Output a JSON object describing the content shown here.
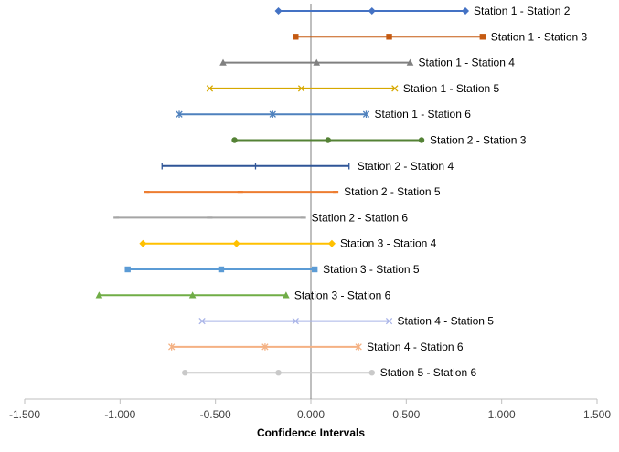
{
  "chart_data": {
    "type": "scatter",
    "title": "",
    "xlabel": "Confidence Intervals",
    "ylabel": "",
    "xlim": [
      -1.5,
      1.5
    ],
    "x_ticks": [
      -1.5,
      -1.0,
      -0.5,
      0.0,
      0.5,
      1.0,
      1.5
    ],
    "x_tick_labels": [
      "-1.500",
      "-1.000",
      "-0.500",
      "0.000",
      "0.500",
      "1.000",
      "1.500"
    ],
    "grid": false,
    "legend": "none",
    "series": [
      {
        "name": "Station 1 - Station 2",
        "lower": -0.17,
        "estimate": 0.32,
        "upper": 0.81,
        "color": "#4472C4",
        "marker": "diamond"
      },
      {
        "name": "Station 1 - Station 3",
        "lower": -0.08,
        "estimate": 0.41,
        "upper": 0.9,
        "color": "#C55A11",
        "marker": "square"
      },
      {
        "name": "Station 1 - Station 4",
        "lower": -0.46,
        "estimate": 0.03,
        "upper": 0.52,
        "color": "#808080",
        "marker": "triangle"
      },
      {
        "name": "Station 1 - Station 5",
        "lower": -0.53,
        "estimate": -0.05,
        "upper": 0.44,
        "color": "#D6A800",
        "marker": "x"
      },
      {
        "name": "Station 1 - Station 6",
        "lower": -0.69,
        "estimate": -0.2,
        "upper": 0.29,
        "color": "#4F81BD",
        "marker": "star"
      },
      {
        "name": "Station 2 - Station 3",
        "lower": -0.4,
        "estimate": 0.09,
        "upper": 0.58,
        "color": "#548235",
        "marker": "circle"
      },
      {
        "name": "Station 2 - Station 4",
        "lower": -0.78,
        "estimate": -0.29,
        "upper": 0.2,
        "color": "#2F5597",
        "marker": "plus"
      },
      {
        "name": "Station 2 - Station 5",
        "lower": -0.86,
        "estimate": -0.37,
        "upper": 0.13,
        "color": "#ED7D31",
        "marker": "dash"
      },
      {
        "name": "Station 2 - Station 6",
        "lower": -1.02,
        "estimate": -0.53,
        "upper": -0.04,
        "color": "#A5A5A5",
        "marker": "dash"
      },
      {
        "name": "Station 3 - Station 4",
        "lower": -0.88,
        "estimate": -0.39,
        "upper": 0.11,
        "color": "#FFC000",
        "marker": "diamond"
      },
      {
        "name": "Station 3 - Station 5",
        "lower": -0.96,
        "estimate": -0.47,
        "upper": 0.02,
        "color": "#5B9BD5",
        "marker": "square"
      },
      {
        "name": "Station 3 - Station 6",
        "lower": -1.11,
        "estimate": -0.62,
        "upper": -0.13,
        "color": "#70AD47",
        "marker": "triangle"
      },
      {
        "name": "Station 4 - Station 5",
        "lower": -0.57,
        "estimate": -0.08,
        "upper": 0.41,
        "color": "#A9B4E8",
        "marker": "x"
      },
      {
        "name": "Station 4 - Station 6",
        "lower": -0.73,
        "estimate": -0.24,
        "upper": 0.25,
        "color": "#F4B183",
        "marker": "star"
      },
      {
        "name": "Station 5 - Station 6",
        "lower": -0.66,
        "estimate": -0.17,
        "upper": 0.32,
        "color": "#C9C9C9",
        "marker": "circle"
      }
    ]
  }
}
